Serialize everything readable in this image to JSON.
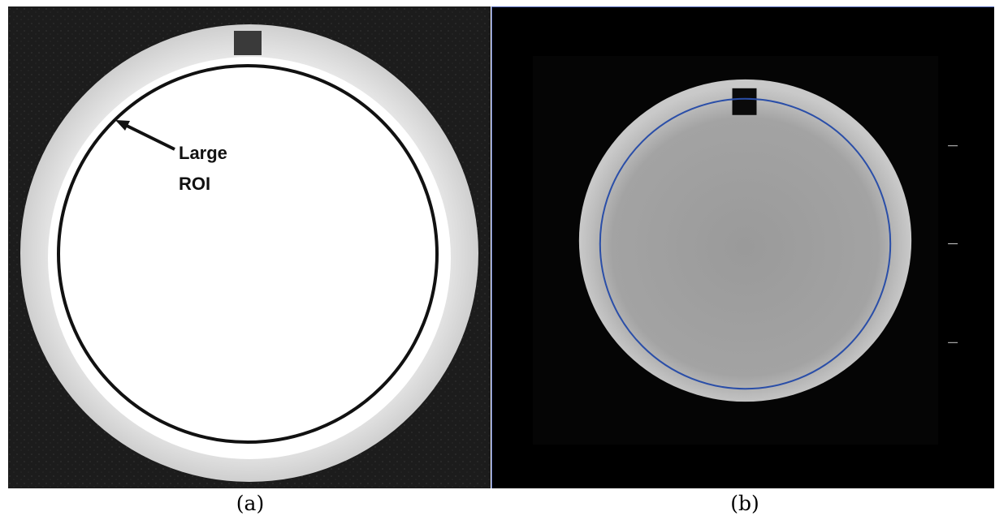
{
  "panels": [
    {
      "id": "a",
      "caption": "(a)",
      "annotation": {
        "line1": "Large",
        "line2": "ROI"
      }
    },
    {
      "id": "b",
      "caption": "(b)"
    }
  ],
  "colors": {
    "roi_ring_a": "#111111",
    "roi_ring_b": "#2a4ea8",
    "phantom_a": "#fbfbfb",
    "phantom_b": "#9a9a9a",
    "panel_border": "#4a5fb0"
  }
}
